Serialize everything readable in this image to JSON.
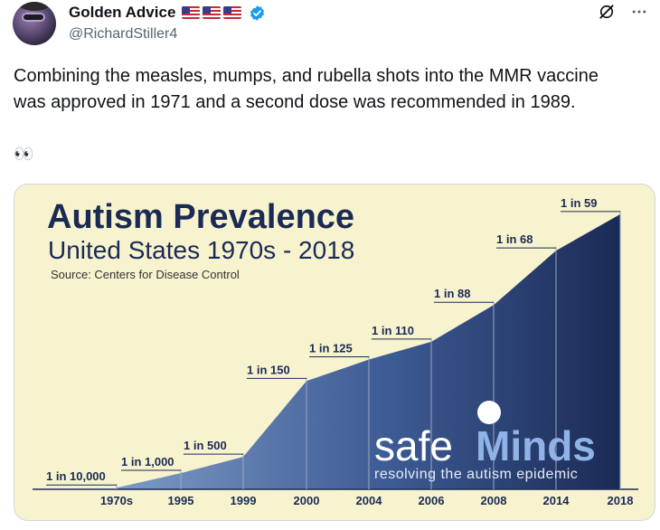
{
  "tweet": {
    "display_name": "Golden Advice",
    "handle": "@RichardStiller4",
    "text_line1": "Combining the measles, mumps, and rubella shots into the MMR vaccine",
    "text_line2": "was approved in 1971 and a second dose was recommended in 1989.",
    "emoji": "👀"
  },
  "colors": {
    "accent": "#1d9bf0",
    "chart_fill_dark": "#1b2a55",
    "chart_fill_light": "#7d9ac6",
    "chart_bg": "#f7f3cf",
    "title": "#1b2a55"
  },
  "icons": [
    "verified-badge-icon",
    "us-flag-icon",
    "grok-icon",
    "more-icon"
  ],
  "chart_data": {
    "type": "area",
    "title": "Autism Prevalence",
    "subtitle": "United States 1970s - 2018",
    "source": "Source: Centers for Disease Control",
    "categories": [
      "1970s",
      "1995",
      "1999",
      "2000",
      "2004",
      "2006",
      "2008",
      "2014",
      "2018"
    ],
    "labels": [
      "1 in 10,000",
      "1 in 1,000",
      "1 in 500",
      "1 in 150",
      "1 in 125",
      "1 in 110",
      "1 in 88",
      "1 in 68",
      "1 in 59"
    ],
    "values": [
      0.0001,
      0.001,
      0.002,
      0.00667,
      0.008,
      0.00909,
      0.01136,
      0.01471,
      0.01695
    ],
    "ylim": [
      0,
      0.017
    ],
    "grid": false,
    "logo_main": "safe",
    "logo_accent": "Minds",
    "logo_tagline": "resolving the autism epidemic"
  }
}
